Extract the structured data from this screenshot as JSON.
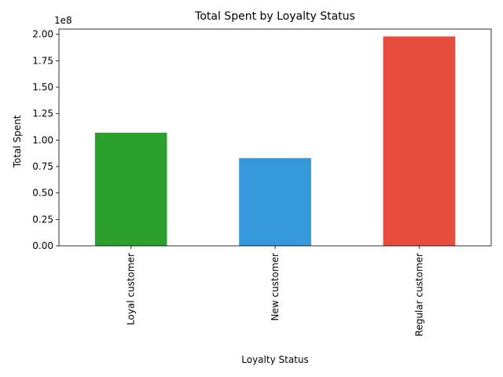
{
  "chart_data": {
    "type": "bar",
    "title": "Total Spent by Loyalty Status",
    "xlabel": "Loyalty Status",
    "ylabel": "Total Spent",
    "offset_label": "1e8",
    "categories": [
      "Loyal customer",
      "New customer",
      "Regular customer"
    ],
    "values": [
      107000000,
      83000000,
      198000000
    ],
    "colors": [
      "#2ca02c",
      "#3498db",
      "#e74c3c"
    ],
    "ylim": [
      0,
      205000000
    ],
    "yticks": [
      0,
      25000000,
      50000000,
      75000000,
      100000000,
      125000000,
      150000000,
      175000000,
      200000000
    ],
    "ytick_labels": [
      "0.00",
      "0.25",
      "0.50",
      "0.75",
      "1.00",
      "1.25",
      "1.50",
      "1.75",
      "2.00"
    ],
    "grid": false,
    "legend": false
  }
}
